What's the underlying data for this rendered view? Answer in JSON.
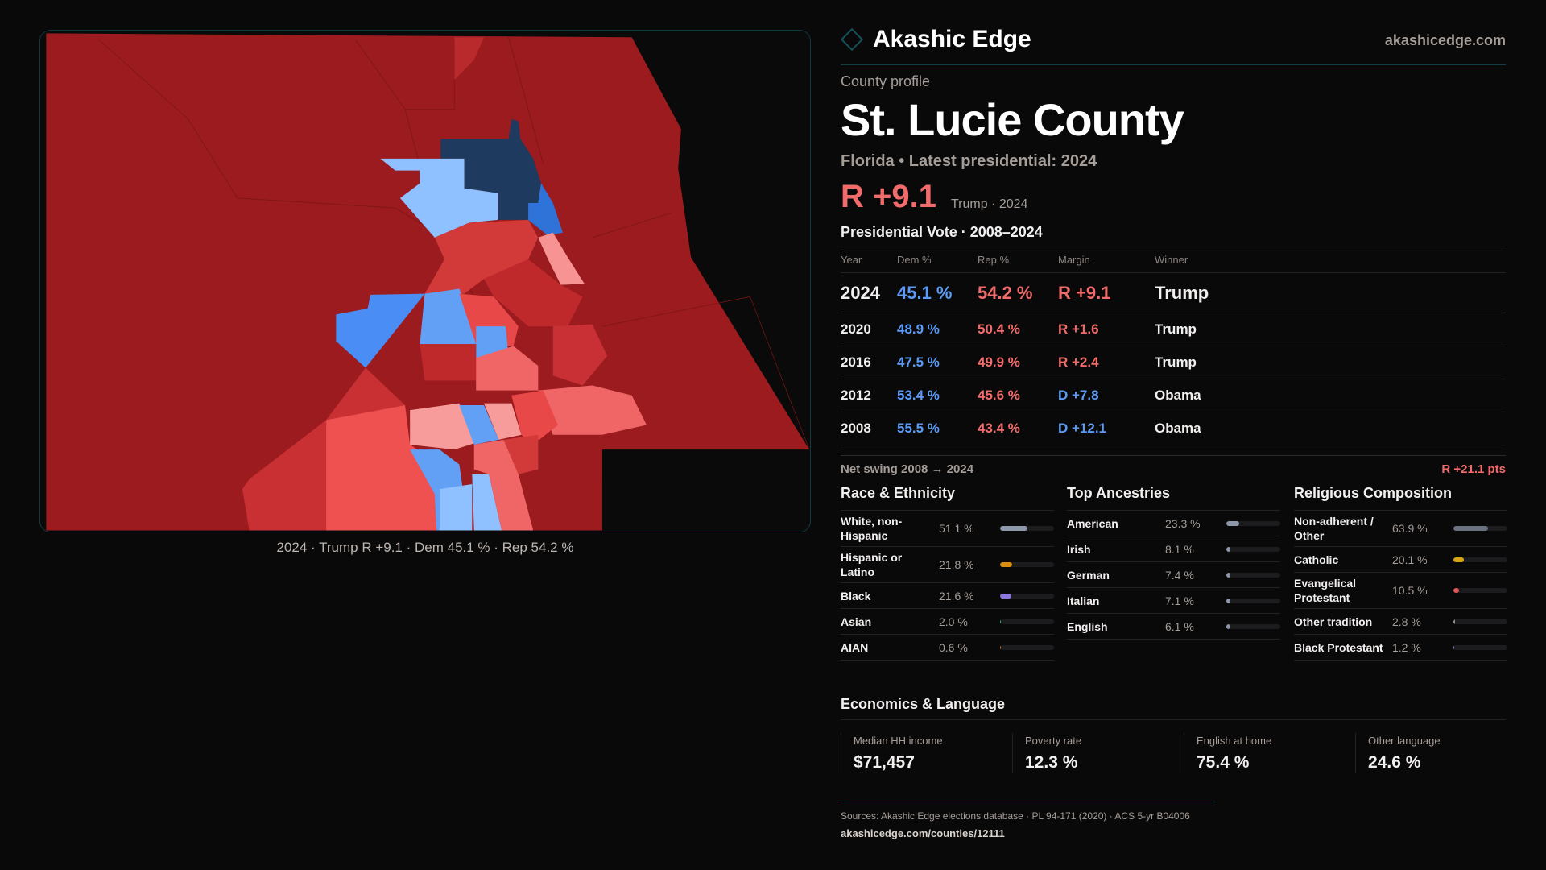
{
  "brand": {
    "name": "Akashic Edge",
    "domain": "akashicedge.com"
  },
  "profile": {
    "kicker": "County profile",
    "county": "St. Lucie County",
    "subtitle": "Florida • Latest presidential: 2024",
    "margin": "R +9.1",
    "margin_note": "Trump · 2024"
  },
  "map": {
    "caption": "2024 · Trump R +9.1 · Dem 45.1 % · Rep 54.2 %"
  },
  "vote": {
    "title": "Presidential Vote · 2008–2024",
    "headers": [
      "Year",
      "Dem %",
      "Rep %",
      "Margin",
      "Winner"
    ],
    "rows": [
      {
        "year": "2024",
        "dem": "45.1 %",
        "rep": "54.2 %",
        "margin": "R +9.1",
        "winner": "Trump",
        "party": "rep"
      },
      {
        "year": "2020",
        "dem": "48.9 %",
        "rep": "50.4 %",
        "margin": "R +1.6",
        "winner": "Trump",
        "party": "rep"
      },
      {
        "year": "2016",
        "dem": "47.5 %",
        "rep": "49.9 %",
        "margin": "R +2.4",
        "winner": "Trump",
        "party": "rep"
      },
      {
        "year": "2012",
        "dem": "53.4 %",
        "rep": "45.6 %",
        "margin": "D +7.8",
        "winner": "Obama",
        "party": "dem"
      },
      {
        "year": "2008",
        "dem": "55.5 %",
        "rep": "43.4 %",
        "margin": "D +12.1",
        "winner": "Obama",
        "party": "dem"
      }
    ]
  },
  "swing": {
    "label": "Net swing 2008 → 2024",
    "value": "R +21.1 pts"
  },
  "race": {
    "title": "Race & Ethnicity",
    "items": [
      {
        "label": "White, non-Hispanic",
        "value": "51.1 %",
        "pct": 51.1,
        "color": "#8d99ab"
      },
      {
        "label": "Hispanic or Latino",
        "value": "21.8 %",
        "pct": 21.8,
        "color": "#d88f0f"
      },
      {
        "label": "Black",
        "value": "21.6 %",
        "pct": 21.6,
        "color": "#8f78dc"
      },
      {
        "label": "Asian",
        "value": "2.0 %",
        "pct": 2.0,
        "color": "#23b58a"
      },
      {
        "label": "AIAN",
        "value": "0.6 %",
        "pct": 0.6,
        "color": "#d8731a"
      }
    ]
  },
  "ancestry": {
    "title": "Top Ancestries",
    "items": [
      {
        "label": "American",
        "value": "23.3 %",
        "pct": 23.3,
        "color": "#8d99ab"
      },
      {
        "label": "Irish",
        "value": "8.1 %",
        "pct": 8.1,
        "color": "#8d99ab"
      },
      {
        "label": "German",
        "value": "7.4 %",
        "pct": 7.4,
        "color": "#8d99ab"
      },
      {
        "label": "Italian",
        "value": "7.1 %",
        "pct": 7.1,
        "color": "#8d99ab"
      },
      {
        "label": "English",
        "value": "6.1 %",
        "pct": 6.1,
        "color": "#8d99ab"
      }
    ]
  },
  "religion": {
    "title": "Religious Composition",
    "items": [
      {
        "label": "Non-adherent / Other",
        "value": "63.9 %",
        "pct": 63.9,
        "color": "#6b7180"
      },
      {
        "label": "Catholic",
        "value": "20.1 %",
        "pct": 20.1,
        "color": "#d9a514"
      },
      {
        "label": "Evangelical Protestant",
        "value": "10.5 %",
        "pct": 10.5,
        "color": "#e05555"
      },
      {
        "label": "Other tradition",
        "value": "2.8 %",
        "pct": 2.8,
        "color": "#8d8d95"
      },
      {
        "label": "Black Protestant",
        "value": "1.2 %",
        "pct": 1.2,
        "color": "#8f78dc"
      }
    ]
  },
  "economics": {
    "title": "Economics & Language",
    "cards": [
      {
        "label": "Median HH income",
        "value": "$71,457"
      },
      {
        "label": "Poverty rate",
        "value": "12.3 %"
      },
      {
        "label": "English at home",
        "value": "75.4 %"
      },
      {
        "label": "Other language",
        "value": "24.6 %"
      }
    ]
  },
  "footer": {
    "sources": "Sources: Akashic Edge elections database · PL 94-171 (2020) · ACS 5-yr B04006",
    "url": "akashicedge.com/counties/12111"
  }
}
